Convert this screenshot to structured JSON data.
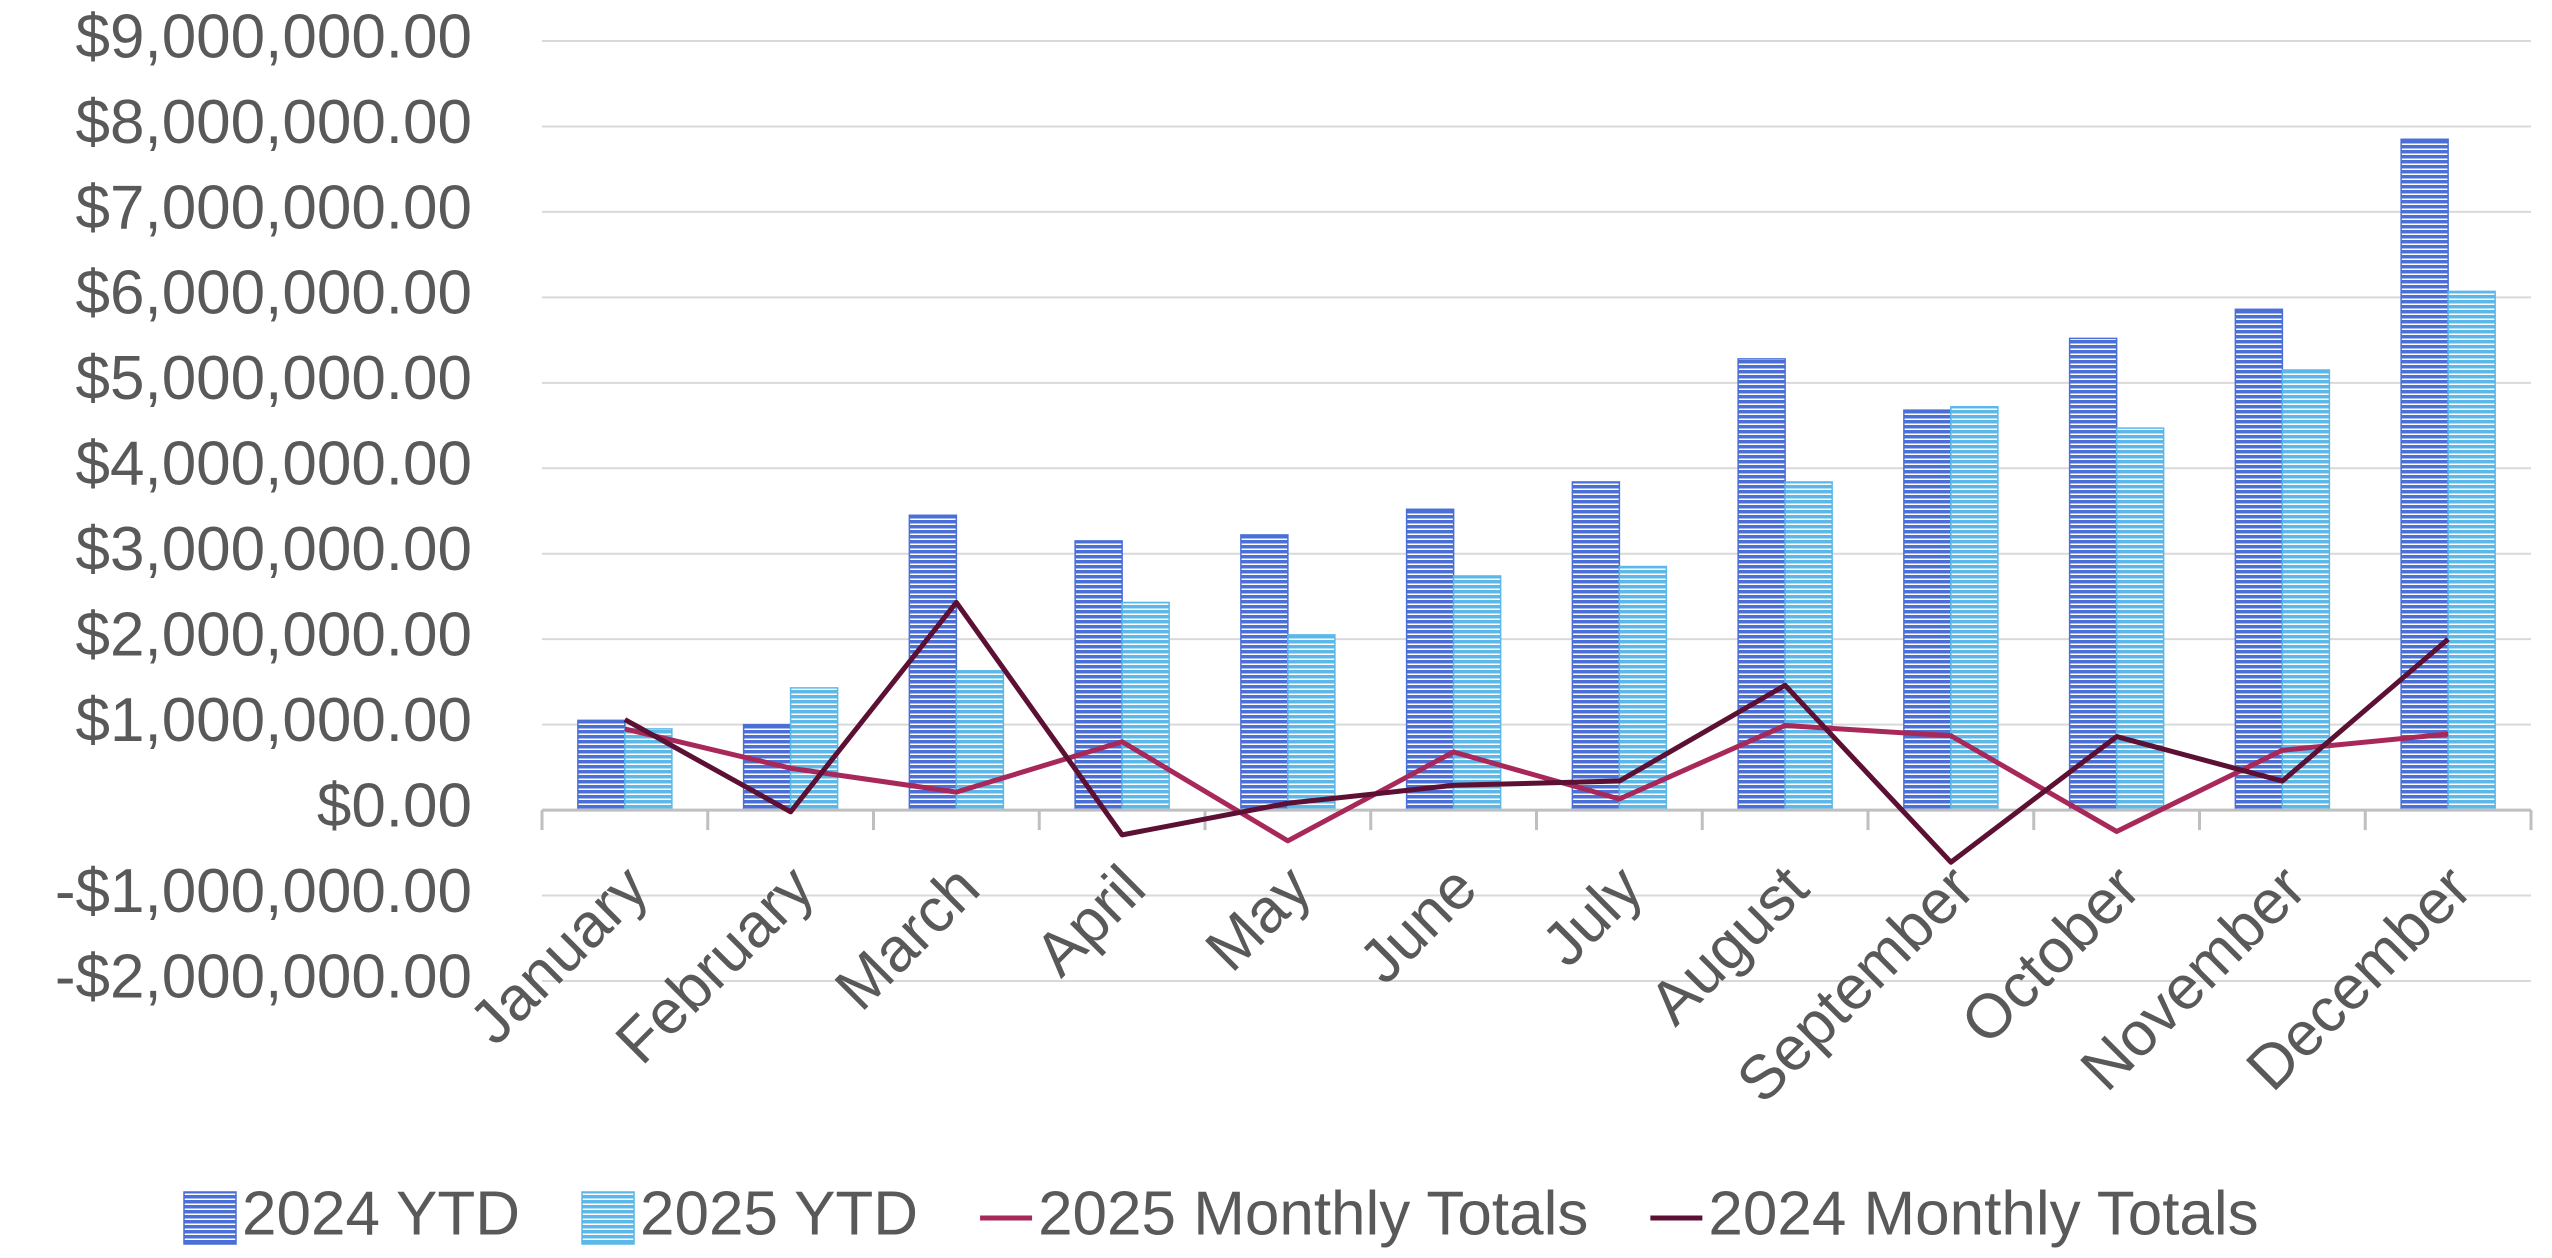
{
  "chart_data": {
    "type": "bar",
    "categories": [
      "January",
      "February",
      "March",
      "April",
      "May",
      "June",
      "July",
      "August",
      "September",
      "October",
      "November",
      "December"
    ],
    "series": [
      {
        "name": "2024 YTD",
        "type": "bar",
        "color": "#4a6fd6",
        "values": [
          1050000,
          1000000,
          3450000,
          3150000,
          3220000,
          3520000,
          3840000,
          5280000,
          4680000,
          5520000,
          5860000,
          7850000
        ]
      },
      {
        "name": "2025 YTD",
        "type": "bar",
        "color": "#5bb8e8",
        "values": [
          950000,
          1430000,
          1630000,
          2430000,
          2050000,
          2740000,
          2850000,
          3840000,
          4720000,
          4470000,
          5150000,
          6070000
        ]
      },
      {
        "name": "2025 Monthly Totals",
        "type": "line",
        "color": "#a8285a",
        "values": [
          950000,
          490000,
          210000,
          800000,
          -360000,
          680000,
          130000,
          990000,
          870000,
          -250000,
          700000,
          890000
        ]
      },
      {
        "name": "2024 Monthly Totals",
        "type": "line",
        "color": "#5c1033",
        "values": [
          1060000,
          -20000,
          2430000,
          -290000,
          80000,
          290000,
          340000,
          1460000,
          -610000,
          860000,
          340000,
          2000000
        ]
      }
    ],
    "ylim": [
      -2000000,
      9000000
    ],
    "yticks": [
      {
        "value": -2000000,
        "label": "-$2,000,000.00"
      },
      {
        "value": -1000000,
        "label": "-$1,000,000.00"
      },
      {
        "value": 0,
        "label": "$0.00"
      },
      {
        "value": 1000000,
        "label": "$1,000,000.00"
      },
      {
        "value": 2000000,
        "label": "$2,000,000.00"
      },
      {
        "value": 3000000,
        "label": "$3,000,000.00"
      },
      {
        "value": 4000000,
        "label": "$4,000,000.00"
      },
      {
        "value": 5000000,
        "label": "$5,000,000.00"
      },
      {
        "value": 6000000,
        "label": "$6,000,000.00"
      },
      {
        "value": 7000000,
        "label": "$7,000,000.00"
      },
      {
        "value": 8000000,
        "label": "$8,000,000.00"
      },
      {
        "value": 9000000,
        "label": "$9,000,000.00"
      }
    ],
    "grid": true,
    "legend": "bottom"
  }
}
